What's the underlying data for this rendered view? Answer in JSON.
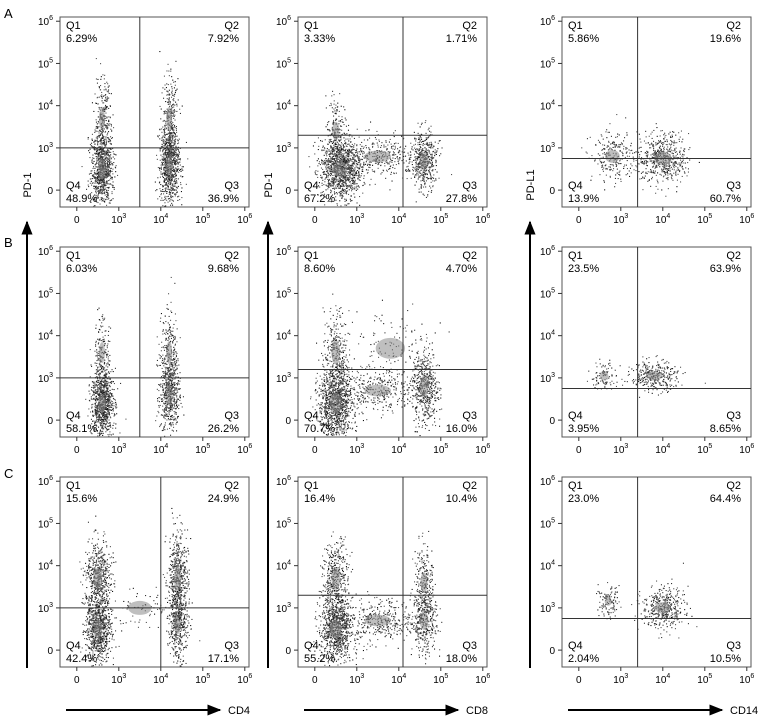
{
  "figure": {
    "row_labels": [
      "A",
      "B",
      "C"
    ],
    "column_axes": [
      {
        "y_label": "PD-1",
        "x_label": "CD4"
      },
      {
        "y_label": "PD-1",
        "x_label": "CD8"
      },
      {
        "y_label": "PD-L1",
        "x_label": "CD14"
      }
    ],
    "y_ticks": [
      "0",
      "10^3",
      "10^4",
      "10^5",
      "10^6"
    ],
    "x_ticks": [
      "0",
      "10^3",
      "10^4",
      "10^5",
      "10^6"
    ]
  },
  "chart_data": [
    {
      "type": "scatter",
      "row": "A",
      "col": 0,
      "ylabel": "PD-1",
      "gate": {
        "x": 3.5,
        "y": 3.0
      },
      "quadrants": {
        "Q1": "6.29%",
        "Q2": "7.92%",
        "Q3": "36.9%",
        "Q4": "48.9%"
      },
      "populations": [
        {
          "x": 2.6,
          "y": 2.5,
          "sx": 0.13,
          "sy": 0.45,
          "w": 1.0
        },
        {
          "x": 2.6,
          "y": 3.7,
          "sx": 0.1,
          "sy": 0.5,
          "w": 0.25
        },
        {
          "x": 4.2,
          "y": 2.6,
          "sx": 0.12,
          "sy": 0.45,
          "w": 0.9
        },
        {
          "x": 4.2,
          "y": 3.7,
          "sx": 0.1,
          "sy": 0.5,
          "w": 0.3
        }
      ]
    },
    {
      "type": "scatter",
      "row": "A",
      "col": 1,
      "ylabel": "PD-1",
      "gate": {
        "x": 4.1,
        "y": 3.3
      },
      "quadrants": {
        "Q1": "3.33%",
        "Q2": "1.71%",
        "Q3": "27.8%",
        "Q4": "67.2%"
      },
      "populations": [
        {
          "x": 2.6,
          "y": 2.5,
          "sx": 0.25,
          "sy": 0.35,
          "w": 1.2
        },
        {
          "x": 2.5,
          "y": 3.4,
          "sx": 0.12,
          "sy": 0.4,
          "w": 0.2
        },
        {
          "x": 3.5,
          "y": 2.8,
          "sx": 0.45,
          "sy": 0.25,
          "w": 0.4
        },
        {
          "x": 4.6,
          "y": 2.7,
          "sx": 0.15,
          "sy": 0.35,
          "w": 0.5
        }
      ]
    },
    {
      "type": "scatter",
      "row": "A",
      "col": 2,
      "ylabel": "PD-L1",
      "gate": {
        "x": 3.4,
        "y": 2.75
      },
      "quadrants": {
        "Q1": "5.86%",
        "Q2": "19.6%",
        "Q3": "60.7%",
        "Q4": "13.9%"
      },
      "populations": [
        {
          "x": 4.0,
          "y": 2.75,
          "sx": 0.3,
          "sy": 0.3,
          "w": 0.6
        },
        {
          "x": 2.8,
          "y": 2.8,
          "sx": 0.25,
          "sy": 0.28,
          "w": 0.25
        }
      ]
    },
    {
      "type": "scatter",
      "row": "B",
      "col": 0,
      "ylabel": "PD-1",
      "gate": {
        "x": 3.5,
        "y": 3.0
      },
      "quadrants": {
        "Q1": "6.03%",
        "Q2": "9.68%",
        "Q3": "26.2%",
        "Q4": "58.1%"
      },
      "populations": [
        {
          "x": 2.6,
          "y": 2.4,
          "sx": 0.13,
          "sy": 0.4,
          "w": 1.0
        },
        {
          "x": 2.6,
          "y": 3.6,
          "sx": 0.1,
          "sy": 0.45,
          "w": 0.2
        },
        {
          "x": 4.2,
          "y": 2.6,
          "sx": 0.12,
          "sy": 0.45,
          "w": 0.6
        },
        {
          "x": 4.2,
          "y": 3.6,
          "sx": 0.1,
          "sy": 0.5,
          "w": 0.25
        }
      ]
    },
    {
      "type": "scatter",
      "row": "B",
      "col": 1,
      "ylabel": "PD-1",
      "gate": {
        "x": 4.1,
        "y": 3.2
      },
      "quadrants": {
        "Q1": "8.60%",
        "Q2": "4.70%",
        "Q3": "16.0%",
        "Q4": "70.7%"
      },
      "populations": [
        {
          "x": 2.5,
          "y": 2.4,
          "sx": 0.2,
          "sy": 0.45,
          "w": 1.2
        },
        {
          "x": 2.5,
          "y": 3.6,
          "sx": 0.15,
          "sy": 0.5,
          "w": 0.3
        },
        {
          "x": 3.5,
          "y": 2.7,
          "sx": 0.45,
          "sy": 0.25,
          "w": 0.35
        },
        {
          "x": 4.6,
          "y": 2.8,
          "sx": 0.15,
          "sy": 0.45,
          "w": 0.6
        },
        {
          "x": 3.8,
          "y": 3.7,
          "sx": 0.5,
          "sy": 0.45,
          "w": 0.12
        }
      ]
    },
    {
      "type": "scatter",
      "row": "B",
      "col": 2,
      "ylabel": "PD-L1",
      "gate": {
        "x": 3.4,
        "y": 2.75
      },
      "quadrants": {
        "Q1": "23.5%",
        "Q2": "63.9%",
        "Q3": "8.65%",
        "Q4": "3.95%"
      },
      "populations": [
        {
          "x": 3.8,
          "y": 3.05,
          "sx": 0.28,
          "sy": 0.18,
          "w": 0.35
        },
        {
          "x": 2.6,
          "y": 3.05,
          "sx": 0.15,
          "sy": 0.18,
          "w": 0.1
        }
      ]
    },
    {
      "type": "scatter",
      "row": "C",
      "col": 0,
      "ylabel": "PD-1",
      "gate": {
        "x": 4.0,
        "y": 3.0
      },
      "quadrants": {
        "Q1": "15.6%",
        "Q2": "24.9%",
        "Q3": "17.1%",
        "Q4": "42.4%"
      },
      "populations": [
        {
          "x": 2.5,
          "y": 2.5,
          "sx": 0.15,
          "sy": 0.4,
          "w": 0.9
        },
        {
          "x": 2.5,
          "y": 3.7,
          "sx": 0.15,
          "sy": 0.45,
          "w": 0.6
        },
        {
          "x": 4.4,
          "y": 2.6,
          "sx": 0.12,
          "sy": 0.4,
          "w": 0.4
        },
        {
          "x": 4.4,
          "y": 3.7,
          "sx": 0.12,
          "sy": 0.55,
          "w": 0.6
        },
        {
          "x": 3.5,
          "y": 3.0,
          "sx": 0.4,
          "sy": 0.3,
          "w": 0.08
        }
      ]
    },
    {
      "type": "scatter",
      "row": "C",
      "col": 1,
      "ylabel": "PD-1",
      "gate": {
        "x": 4.1,
        "y": 3.3
      },
      "quadrants": {
        "Q1": "16.4%",
        "Q2": "10.4%",
        "Q3": "18.0%",
        "Q4": "55.2%"
      },
      "populations": [
        {
          "x": 2.5,
          "y": 2.5,
          "sx": 0.2,
          "sy": 0.4,
          "w": 1.0
        },
        {
          "x": 2.5,
          "y": 3.7,
          "sx": 0.15,
          "sy": 0.45,
          "w": 0.45
        },
        {
          "x": 3.5,
          "y": 2.7,
          "sx": 0.45,
          "sy": 0.25,
          "w": 0.4
        },
        {
          "x": 4.6,
          "y": 2.7,
          "sx": 0.15,
          "sy": 0.4,
          "w": 0.4
        },
        {
          "x": 4.6,
          "y": 3.6,
          "sx": 0.12,
          "sy": 0.45,
          "w": 0.25
        }
      ]
    },
    {
      "type": "scatter",
      "row": "C",
      "col": 2,
      "ylabel": "PD-L1",
      "gate": {
        "x": 3.4,
        "y": 2.75
      },
      "quadrants": {
        "Q1": "23.0%",
        "Q2": "64.4%",
        "Q3": "10.5%",
        "Q4": "2.04%"
      },
      "populations": [
        {
          "x": 4.0,
          "y": 3.0,
          "sx": 0.25,
          "sy": 0.25,
          "w": 0.45
        },
        {
          "x": 2.7,
          "y": 3.15,
          "sx": 0.12,
          "sy": 0.18,
          "w": 0.12
        }
      ]
    }
  ]
}
